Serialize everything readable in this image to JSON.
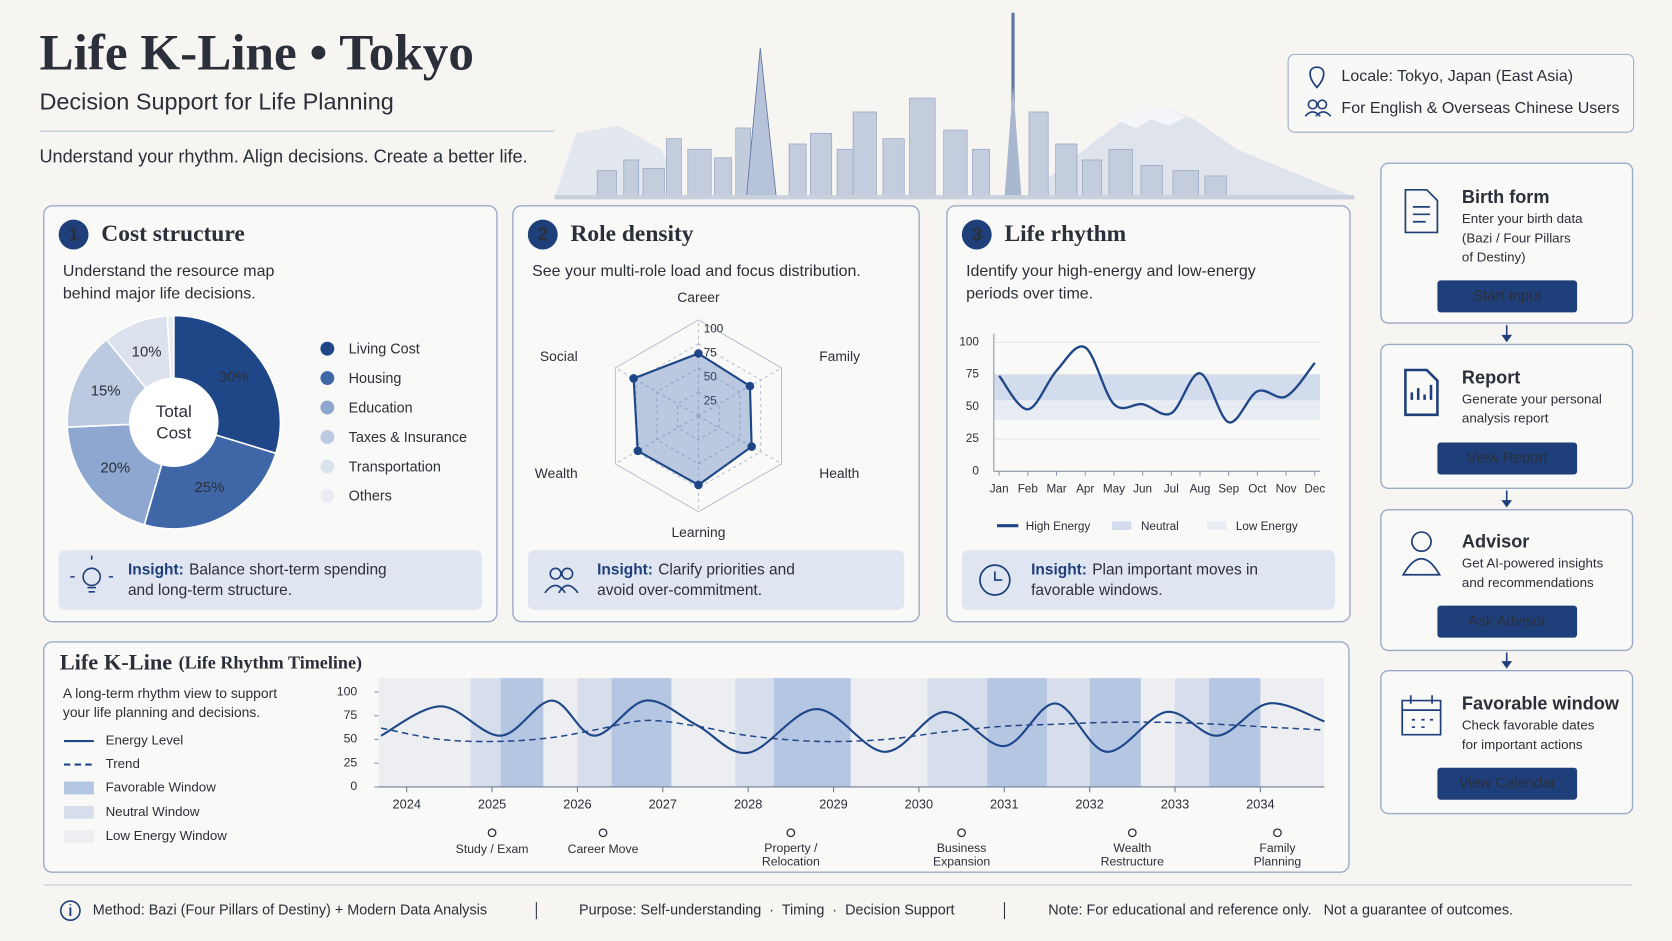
{
  "header": {
    "title": "Life K-Line • Tokyo",
    "subtitle": "Decision Support for Life Planning",
    "tagline": "Understand your rhythm. Align decisions. Create a better life."
  },
  "locale": {
    "locale": "Locale: Tokyo, Japan (East Asia)",
    "audience": "For English & Overseas Chinese Users"
  },
  "cards": [
    {
      "number": "1",
      "title": "Cost structure",
      "description": [
        "Understand the resource map",
        "behind major life decisions."
      ],
      "insight_label": "Insight:",
      "insight": [
        "Balance short-term spending",
        "and long-term structure."
      ]
    },
    {
      "number": "2",
      "title": "Role density",
      "description": [
        "See your multi-role load and focus distribution."
      ],
      "insight_label": "Insight:",
      "insight": [
        "Clarify priorities and",
        "avoid over-commitment."
      ]
    },
    {
      "number": "3",
      "title": "Life rhythm",
      "description": [
        "Identify your high-energy and low-energy",
        "periods over time."
      ],
      "insight_label": "Insight:",
      "insight": [
        "Plan important moves in",
        "favorable windows."
      ]
    }
  ],
  "chart_data": [
    {
      "type": "pie",
      "center_label": [
        "Total",
        "Cost"
      ],
      "categories": [
        "Living Cost",
        "Housing",
        "Education",
        "Taxes & Insurance",
        "Transportation",
        "Others"
      ],
      "values": [
        30,
        25,
        20,
        15,
        10,
        1
      ],
      "value_labels": [
        "30%",
        "25%",
        "20%",
        "15%",
        "10%",
        null
      ],
      "colors": [
        "#1f4788",
        "#3f67a8",
        "#8ea7d1",
        "#bccae1",
        "#dbe2ee",
        "#e9edf3"
      ]
    },
    {
      "type": "radar",
      "categories": [
        "Career",
        "Family",
        "Health",
        "Learning",
        "Wealth",
        "Social"
      ],
      "values": [
        65,
        62,
        64,
        72,
        73,
        78
      ],
      "rlim": [
        0,
        100
      ],
      "rticks": [
        25,
        50,
        75,
        100
      ],
      "color": "#1f4788"
    },
    {
      "type": "line",
      "categories": [
        "Jan",
        "Feb",
        "Mar",
        "Apr",
        "May",
        "Jun",
        "Jul",
        "Aug",
        "Sep",
        "Oct",
        "Nov",
        "Dec"
      ],
      "series": [
        {
          "name": "High Energy",
          "color": "#1f4788",
          "values": [
            74,
            48,
            78,
            96,
            52,
            52,
            45,
            76,
            38,
            62,
            58,
            84
          ]
        }
      ],
      "bands": [
        {
          "name": "Neutral",
          "color": "#d3dcec",
          "range": [
            55,
            75
          ]
        },
        {
          "name": "Low Energy",
          "color": "#e8ecf3",
          "range": [
            40,
            55
          ]
        }
      ],
      "ylim": [
        0,
        100
      ],
      "yticks": [
        0,
        25,
        50,
        75,
        100
      ],
      "grid": true
    },
    {
      "type": "line",
      "x": [
        2023.7,
        2024.4,
        2025.1,
        2025.7,
        2026.2,
        2026.8,
        2027.4,
        2028.0,
        2028.8,
        2029.6,
        2030.3,
        2031.0,
        2031.6,
        2032.2,
        2032.9,
        2033.5,
        2034.1,
        2034.75
      ],
      "series": [
        {
          "name": "Energy Level",
          "color": "#1f4788",
          "dashed": false,
          "values": [
            54,
            85,
            54,
            91,
            54,
            91,
            65,
            36,
            82,
            37,
            79,
            43,
            88,
            37,
            79,
            54,
            88,
            69
          ]
        },
        {
          "name": "Trend",
          "color": "#1f4788",
          "dashed": true,
          "values": [
            62,
            50,
            48,
            52,
            60,
            70,
            64,
            54,
            48,
            50,
            58,
            64,
            66,
            68,
            68,
            66,
            63,
            60
          ]
        }
      ],
      "windows": [
        {
          "name": "Favorable Window",
          "color": "#b5c6e2",
          "ranges": [
            [
              2025.1,
              2025.6
            ],
            [
              2026.4,
              2027.1
            ],
            [
              2028.3,
              2029.2
            ],
            [
              2030.8,
              2031.5
            ],
            [
              2032.0,
              2032.6
            ],
            [
              2033.4,
              2034.0
            ]
          ]
        },
        {
          "name": "Neutral Window",
          "color": "#d6deec",
          "ranges": [
            [
              2024.75,
              2025.1
            ],
            [
              2026.0,
              2026.4
            ],
            [
              2027.85,
              2028.3
            ],
            [
              2030.1,
              2030.8
            ],
            [
              2031.5,
              2032.0
            ],
            [
              2033.0,
              2033.4
            ]
          ]
        },
        {
          "name": "Low Energy Window",
          "color": "#eceef2",
          "ranges": [
            [
              2023.67,
              2034.75
            ]
          ]
        }
      ],
      "events": [
        {
          "x": 2025.0,
          "label": [
            "Study / Exam"
          ]
        },
        {
          "x": 2026.3,
          "label": [
            "Career Move"
          ]
        },
        {
          "x": 2028.5,
          "label": [
            "Property /",
            "Relocation"
          ]
        },
        {
          "x": 2030.5,
          "label": [
            "Business",
            "Expansion"
          ]
        },
        {
          "x": 2032.5,
          "label": [
            "Wealth",
            "Restructure"
          ]
        },
        {
          "x": 2034.2,
          "label": [
            "Family",
            "Planning"
          ]
        }
      ],
      "xlim": [
        2023.67,
        2034.75
      ],
      "xticks": [
        2024,
        2025,
        2026,
        2027,
        2028,
        2029,
        2030,
        2031,
        2032,
        2033,
        2034
      ],
      "ylim": [
        0,
        100
      ],
      "yticks": [
        0,
        25,
        50,
        75,
        100
      ]
    }
  ],
  "timeline": {
    "title": "Life K-Line",
    "title_note": "(Life Rhythm Timeline)",
    "description": [
      "A long-term rhythm view to support",
      "your life planning and decisions."
    ]
  },
  "steps": [
    {
      "title": "Birth form",
      "description": [
        "Enter your birth data",
        "(Bazi / Four Pillars",
        "of Destiny)"
      ],
      "button": "Start Input"
    },
    {
      "title": "Report",
      "description": [
        "Generate your personal",
        "analysis report"
      ],
      "button": "View Report"
    },
    {
      "title": "Advisor",
      "description": [
        "Get AI-powered insights",
        "and recommendations"
      ],
      "button": "Ask Advisor"
    },
    {
      "title": "Favorable window",
      "description": [
        "Check favorable dates",
        "for important actions"
      ],
      "button": "View Calendar"
    }
  ],
  "footer": {
    "method": "Method: Bazi (Four Pillars of Destiny) + Modern Data Analysis",
    "purpose": "Purpose: Self-understanding  ·  Timing  ·  Decision Support",
    "note": "Note: For educational and reference only.   Not a guarantee of outcomes."
  }
}
